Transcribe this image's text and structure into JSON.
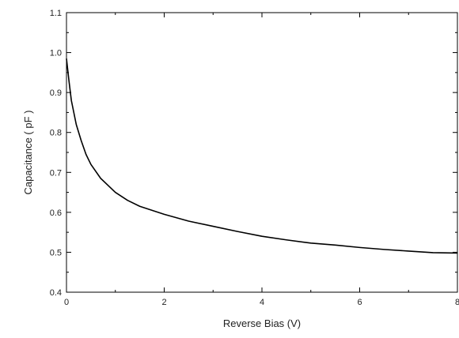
{
  "chart_data": {
    "type": "line",
    "title": "",
    "xlabel": "Reverse Bias (V)",
    "ylabel": "Capacitance ( pF )",
    "xlim": [
      0,
      8
    ],
    "ylim": [
      0.4,
      1.1
    ],
    "xticks": [
      0,
      2,
      4,
      6,
      8
    ],
    "yticks": [
      0.4,
      0.5,
      0.6,
      0.7,
      0.8,
      0.9,
      1.0,
      1.1
    ],
    "x_tick_labels": [
      "0",
      "2",
      "4",
      "6",
      "8"
    ],
    "y_tick_labels": [
      "0.4",
      "0.5",
      "0.6",
      "0.7",
      "0.8",
      "0.9",
      "1.0",
      "1.1"
    ],
    "grid": false,
    "line_color": "#000000",
    "series": [
      {
        "x": [
          0,
          0.05,
          0.1,
          0.2,
          0.3,
          0.4,
          0.5,
          0.7,
          1.0,
          1.25,
          1.5,
          2.0,
          2.5,
          3.0,
          3.5,
          4.0,
          4.5,
          5.0,
          5.5,
          6.0,
          6.5,
          7.0,
          7.5,
          8.0
        ],
        "y": [
          0.985,
          0.93,
          0.88,
          0.82,
          0.78,
          0.745,
          0.72,
          0.685,
          0.65,
          0.63,
          0.615,
          0.595,
          0.578,
          0.565,
          0.552,
          0.54,
          0.531,
          0.523,
          0.518,
          0.512,
          0.507,
          0.503,
          0.499,
          0.498
        ]
      }
    ]
  }
}
